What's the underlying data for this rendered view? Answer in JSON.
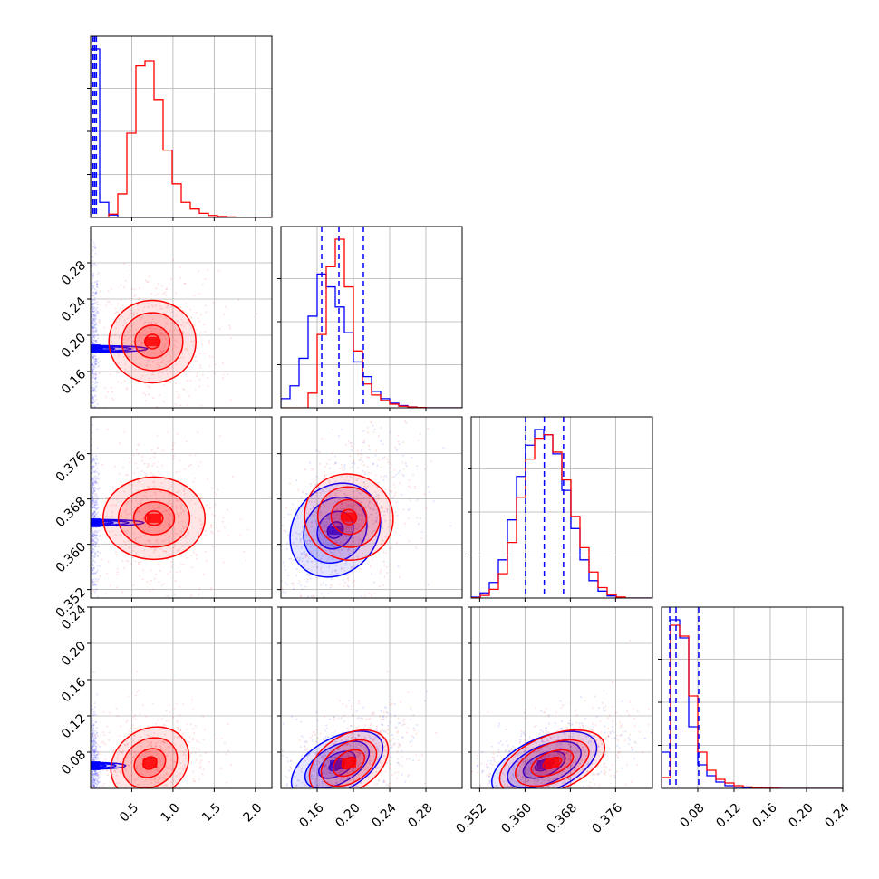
{
  "chart_data": {
    "type": "corner",
    "series": [
      {
        "color": "#0000ff"
      },
      {
        "color": "#ff0000"
      }
    ],
    "parameters": [
      {
        "range": [
          0.0,
          2.2
        ],
        "ticks": [
          0.5,
          1.0,
          1.5,
          2.0
        ],
        "tick_labels": [
          "0.5",
          "1.0",
          "1.5",
          "2.0"
        ]
      },
      {
        "range": [
          0.12,
          0.32
        ],
        "ticks": [
          0.16,
          0.2,
          0.24,
          0.28
        ],
        "tick_labels": [
          "0.16",
          "0.20",
          "0.24",
          "0.28"
        ]
      },
      {
        "range": [
          0.3505,
          0.3825
        ],
        "ticks": [
          0.352,
          0.36,
          0.368,
          0.376
        ],
        "tick_labels": [
          "0.352",
          "0.360",
          "0.368",
          "0.376"
        ]
      },
      {
        "range": [
          0.04,
          0.24
        ],
        "ticks": [
          0.08,
          0.12,
          0.16,
          0.2,
          0.24
        ],
        "tick_labels": [
          "0.08",
          "0.12",
          "0.16",
          "0.20",
          "0.24"
        ]
      }
    ],
    "histograms": [
      {
        "param": 0,
        "bin_edges": [
          0.0,
          0.11,
          0.22,
          0.33,
          0.44,
          0.55,
          0.66,
          0.77,
          0.88,
          0.99,
          1.1,
          1.21,
          1.32,
          1.43,
          1.54,
          1.65,
          1.76,
          1.87,
          1.98,
          2.09,
          2.2
        ],
        "series_counts": [
          [
            1.0,
            0.09,
            0.015,
            0,
            0,
            0,
            0,
            0,
            0,
            0,
            0,
            0,
            0,
            0,
            0,
            0,
            0,
            0,
            0,
            0
          ],
          [
            0,
            0,
            0.02,
            0.14,
            0.5,
            0.9,
            0.93,
            0.7,
            0.4,
            0.2,
            0.09,
            0.05,
            0.025,
            0.012,
            0.006,
            0.003,
            0.0015,
            0,
            0,
            0
          ]
        ],
        "quantiles": [
          0.03,
          0.05,
          0.07
        ]
      },
      {
        "param": 1,
        "bin_edges": [
          0.12,
          0.13,
          0.14,
          0.15,
          0.16,
          0.17,
          0.18,
          0.19,
          0.2,
          0.21,
          0.22,
          0.23,
          0.24,
          0.25,
          0.26,
          0.27,
          0.28,
          0.29,
          0.3,
          0.31,
          0.32
        ],
        "series_counts": [
          [
            0.05,
            0.12,
            0.27,
            0.5,
            0.73,
            0.66,
            0.55,
            0.41,
            0.25,
            0.17,
            0.09,
            0.05,
            0.025,
            0.012,
            0.005,
            0.002,
            0,
            0,
            0,
            0
          ],
          [
            0,
            0,
            0,
            0.08,
            0.4,
            0.77,
            0.92,
            0.66,
            0.31,
            0.13,
            0.07,
            0.04,
            0.02,
            0.009,
            0.004,
            0.002,
            0,
            0,
            0,
            0
          ]
        ],
        "quantiles": [
          0.165,
          0.184,
          0.211
        ]
      },
      {
        "param": 2,
        "bin_edges": [
          0.3505,
          0.3521,
          0.3537,
          0.3553,
          0.3569,
          0.3585,
          0.3601,
          0.3617,
          0.3633,
          0.3649,
          0.3665,
          0.3681,
          0.3697,
          0.3713,
          0.3729,
          0.3745,
          0.3761,
          0.3777,
          0.3793,
          0.3809,
          0.3825
        ],
        "series_counts": [
          [
            0.005,
            0.03,
            0.09,
            0.22,
            0.45,
            0.7,
            0.88,
            0.97,
            0.94,
            0.83,
            0.62,
            0.4,
            0.22,
            0.1,
            0.04,
            0.012,
            0.003,
            0,
            0,
            0
          ],
          [
            0.002,
            0.015,
            0.05,
            0.14,
            0.32,
            0.58,
            0.8,
            0.92,
            0.94,
            0.84,
            0.68,
            0.47,
            0.29,
            0.15,
            0.06,
            0.02,
            0.006,
            0,
            0,
            0
          ]
        ],
        "quantiles": [
          0.3601,
          0.3634,
          0.3668
        ]
      },
      {
        "param": 3,
        "bin_edges": [
          0.04,
          0.05,
          0.06,
          0.07,
          0.08,
          0.09,
          0.1,
          0.11,
          0.12,
          0.13,
          0.14,
          0.15,
          0.16,
          0.17,
          0.18,
          0.19,
          0.2,
          0.21,
          0.22,
          0.23,
          0.24
        ],
        "series_counts": [
          [
            0.2,
            0.93,
            0.83,
            0.34,
            0.13,
            0.07,
            0.035,
            0.015,
            0.007,
            0.003,
            0.001,
            0,
            0,
            0,
            0,
            0,
            0,
            0,
            0,
            0
          ],
          [
            0.06,
            0.9,
            0.84,
            0.51,
            0.2,
            0.1,
            0.05,
            0.03,
            0.015,
            0.008,
            0.004,
            0.002,
            0.001,
            0,
            0,
            0,
            0,
            0,
            0,
            0
          ]
        ],
        "quantiles": [
          0.049,
          0.056,
          0.081
        ]
      }
    ],
    "joint_distributions": [
      {
        "x": 0,
        "y": 1,
        "centers": [
          [
            0.03,
            0.185
          ],
          [
            0.75,
            0.193
          ]
        ],
        "spread": [
          [
            0.02,
            0.03
          ],
          [
            0.25,
            0.024
          ]
        ],
        "rho": [
          0.0,
          0.0
        ]
      },
      {
        "x": 0,
        "y": 2,
        "centers": [
          [
            0.03,
            0.3638
          ],
          [
            0.77,
            0.3646
          ]
        ],
        "spread": [
          [
            0.02,
            0.0045
          ],
          [
            0.25,
            0.0045
          ]
        ],
        "rho": [
          0.0,
          0.0
        ]
      },
      {
        "x": 0,
        "y": 3,
        "centers": [
          [
            0.03,
            0.065
          ],
          [
            0.72,
            0.068
          ]
        ],
        "spread": [
          [
            0.02,
            0.018
          ],
          [
            0.24,
            0.02
          ]
        ],
        "rho": [
          0.0,
          0.2
        ]
      },
      {
        "x": 1,
        "y": 2,
        "centers": [
          [
            0.18,
            0.3625
          ],
          [
            0.195,
            0.3648
          ]
        ],
        "spread": [
          [
            0.025,
            0.0045
          ],
          [
            0.022,
            0.0045
          ]
        ],
        "rho": [
          0.5,
          0.35
        ]
      },
      {
        "x": 1,
        "y": 3,
        "centers": [
          [
            0.182,
            0.066
          ],
          [
            0.195,
            0.068
          ]
        ],
        "spread": [
          [
            0.025,
            0.018
          ],
          [
            0.022,
            0.018
          ]
        ],
        "rho": [
          0.55,
          0.45
        ]
      },
      {
        "x": 2,
        "y": 3,
        "centers": [
          [
            0.3634,
            0.066
          ],
          [
            0.3648,
            0.068
          ]
        ],
        "spread": [
          [
            0.0045,
            0.018
          ],
          [
            0.0045,
            0.018
          ]
        ],
        "rho": [
          0.5,
          0.45
        ]
      }
    ],
    "grid": true,
    "legend": null
  }
}
